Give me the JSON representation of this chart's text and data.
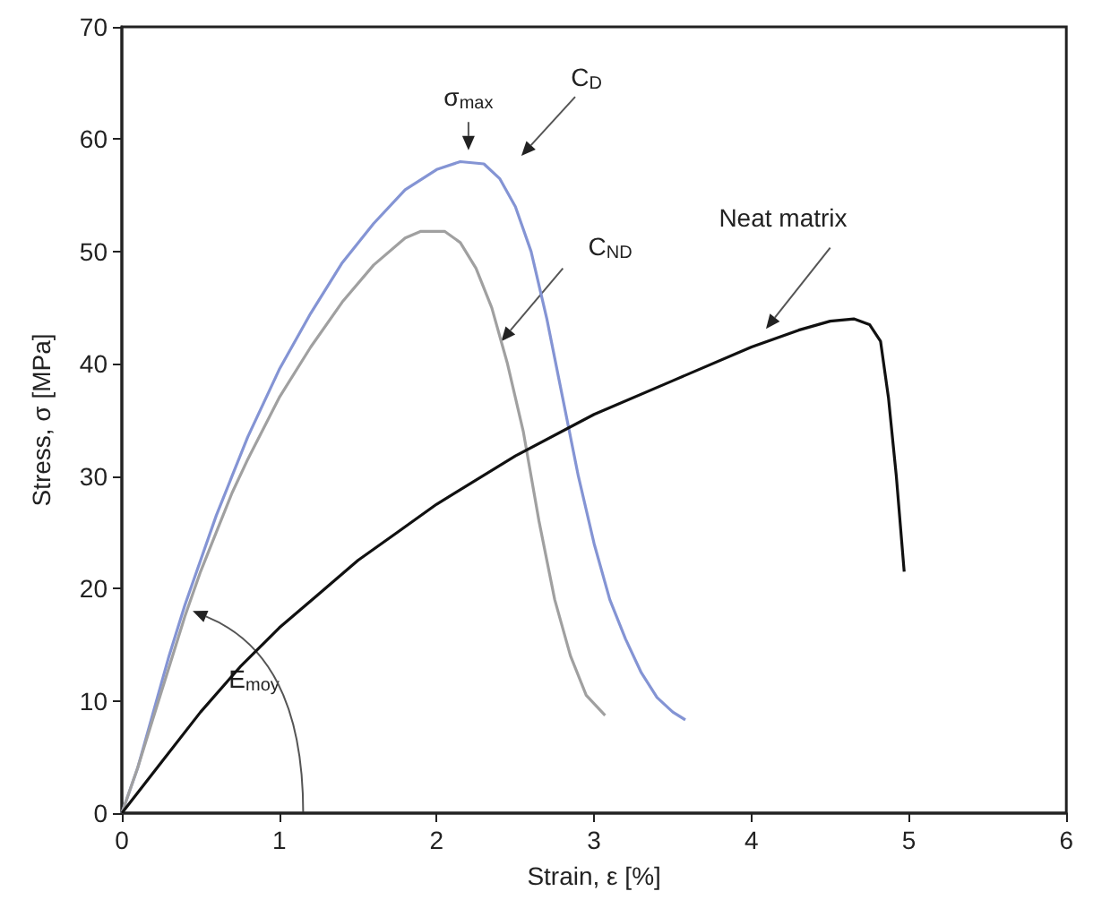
{
  "chart_data": {
    "type": "line",
    "xlabel": "Strain, ε [%]",
    "ylabel": "Stress, σ [MPa]",
    "xlim": [
      0,
      6
    ],
    "xticks": [
      0,
      1,
      2,
      3,
      4,
      5,
      6
    ],
    "ylim": [
      0,
      70
    ],
    "yticks": [
      0,
      10,
      20,
      30,
      40,
      50,
      60,
      70
    ],
    "grid": false,
    "marker": "none",
    "line_style": "solid",
    "series": [
      {
        "color": "#8494d4",
        "x": [
          0,
          0.1,
          0.2,
          0.3,
          0.4,
          0.5,
          0.6,
          0.7,
          0.8,
          1.0,
          1.2,
          1.4,
          1.6,
          1.8,
          2.0,
          2.15,
          2.3,
          2.4,
          2.5,
          2.6,
          2.7,
          2.8,
          2.9,
          3.0,
          3.1,
          3.2,
          3.3,
          3.4,
          3.5,
          3.58
        ],
        "values": [
          0,
          4,
          9,
          14,
          18.5,
          22.5,
          26.5,
          30,
          33.5,
          39.5,
          44.5,
          49,
          52.5,
          55.5,
          57.3,
          58,
          57.8,
          56.5,
          54,
          50,
          44,
          37,
          30,
          24,
          19,
          15.5,
          12.5,
          10.3,
          9,
          8.3
        ]
      },
      {
        "color": "#a0a0a0",
        "x": [
          0,
          0.1,
          0.2,
          0.3,
          0.4,
          0.5,
          0.6,
          0.7,
          0.8,
          1.0,
          1.2,
          1.4,
          1.6,
          1.8,
          1.9,
          2.05,
          2.15,
          2.25,
          2.35,
          2.45,
          2.55,
          2.65,
          2.75,
          2.85,
          2.95,
          3.07
        ],
        "values": [
          0,
          4,
          8.5,
          13,
          17.5,
          21.5,
          25,
          28.5,
          31.5,
          37,
          41.5,
          45.5,
          48.8,
          51.2,
          51.8,
          51.8,
          50.8,
          48.5,
          45,
          40,
          34,
          26,
          19,
          14,
          10.5,
          8.7
        ]
      },
      {
        "color": "#111111",
        "x": [
          0,
          0.25,
          0.5,
          0.75,
          1,
          1.25,
          1.5,
          1.75,
          2,
          2.5,
          3,
          3.5,
          4,
          4.3,
          4.5,
          4.65,
          4.75,
          4.82,
          4.87,
          4.92,
          4.97
        ],
        "values": [
          0,
          4.5,
          9,
          13,
          16.5,
          19.5,
          22.5,
          25,
          27.5,
          31.8,
          35.5,
          38.5,
          41.5,
          43,
          43.8,
          44,
          43.5,
          42,
          37,
          30,
          21.5
        ]
      }
    ],
    "annotations": [
      "σ$_{max}$",
      "C$_{D}$",
      {
        "text": "C$_{ND}$",
        "x": 2.41,
        "y": 42
      },
      "Neat matrix",
      "E$_{moy}$"
    ]
  }
}
